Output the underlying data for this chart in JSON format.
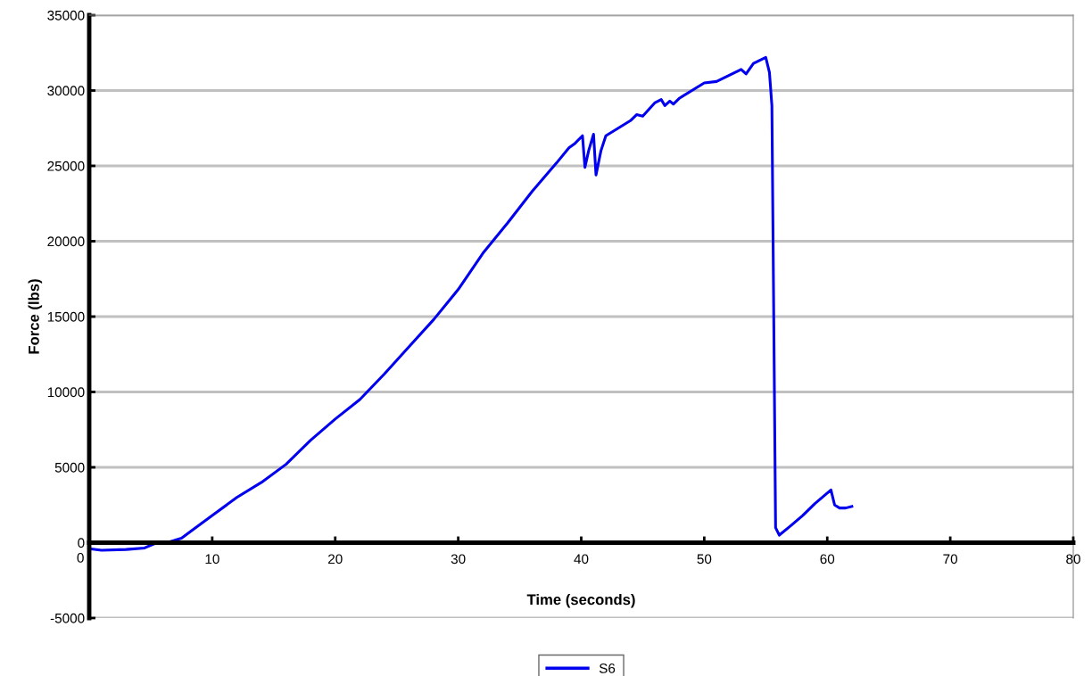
{
  "chart_data": {
    "type": "line",
    "xlabel": "Time (seconds)",
    "ylabel": "Force (lbs)",
    "xlim": [
      0,
      80
    ],
    "xticks": [
      0,
      10,
      20,
      30,
      40,
      50,
      60,
      70,
      80
    ],
    "ylim": [
      -5000,
      35000
    ],
    "yticks": [
      -5000,
      0,
      5000,
      10000,
      15000,
      20000,
      25000,
      30000,
      35000
    ],
    "grid": "y",
    "legend": "bottom",
    "marker": "none",
    "line_style": "solid",
    "series": [
      {
        "name": "S6",
        "color": "#0000ee",
        "x": [
          0,
          1,
          3,
          4.5,
          5.5,
          6.5,
          7.5,
          8.5,
          10,
          12,
          14,
          16,
          18,
          20,
          22,
          24,
          26,
          28,
          30,
          32,
          34,
          36,
          38,
          39,
          39.5,
          40.1,
          40.3,
          40.6,
          41,
          41.2,
          41.6,
          42,
          44,
          44.5,
          45,
          46,
          46.5,
          46.8,
          47.2,
          47.5,
          48,
          50,
          51,
          52,
          53,
          53.4,
          54,
          55,
          55.3,
          55.5,
          55.8,
          56.1,
          57,
          58,
          59,
          60.3,
          60.6,
          61,
          61.5,
          62
        ],
        "values": [
          -400,
          -500,
          -450,
          -350,
          0,
          50,
          300,
          900,
          1800,
          3000,
          4000,
          5200,
          6800,
          8200,
          9500,
          11200,
          13000,
          14800,
          16800,
          19200,
          21200,
          23300,
          25200,
          26200,
          26500,
          27000,
          24900,
          26000,
          27100,
          24400,
          26000,
          27000,
          28000,
          28400,
          28300,
          29200,
          29400,
          29000,
          29300,
          29100,
          29500,
          30500,
          30600,
          31000,
          31400,
          31100,
          31800,
          32200,
          31200,
          29000,
          1000,
          500,
          1100,
          1800,
          2600,
          3500,
          2500,
          2300,
          2300,
          2400
        ]
      }
    ]
  }
}
